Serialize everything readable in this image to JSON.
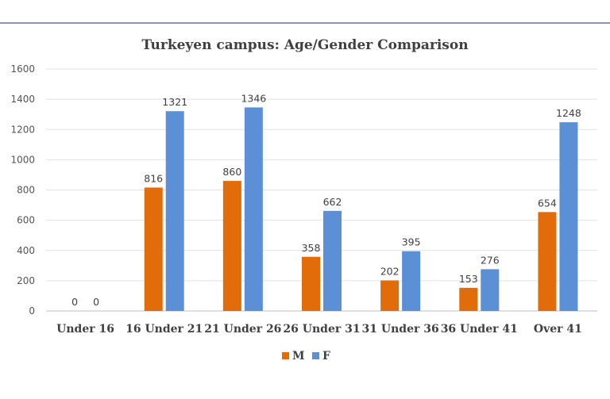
{
  "chart_data": {
    "type": "bar",
    "title": "Turkeyen campus: Age/Gender Comparison",
    "xlabel": "",
    "ylabel": "",
    "categories": [
      "Under 16",
      "16 Under 21",
      "21 Under 26",
      "26 Under 31",
      "31 Under 36",
      "36 Under 41",
      "Over 41"
    ],
    "series": [
      {
        "name": "M",
        "color": "#e36c0a",
        "values": [
          0,
          816,
          860,
          358,
          202,
          153,
          654
        ]
      },
      {
        "name": "F",
        "color": "#5b8fd6",
        "values": [
          0,
          1321,
          1346,
          662,
          395,
          276,
          1248
        ]
      }
    ],
    "ylim": [
      0,
      1600
    ],
    "yticks": [
      0,
      200,
      400,
      600,
      800,
      1000,
      1200,
      1400,
      1600
    ],
    "grid": true,
    "data_labels": true,
    "legend_position": "bottom-center"
  }
}
